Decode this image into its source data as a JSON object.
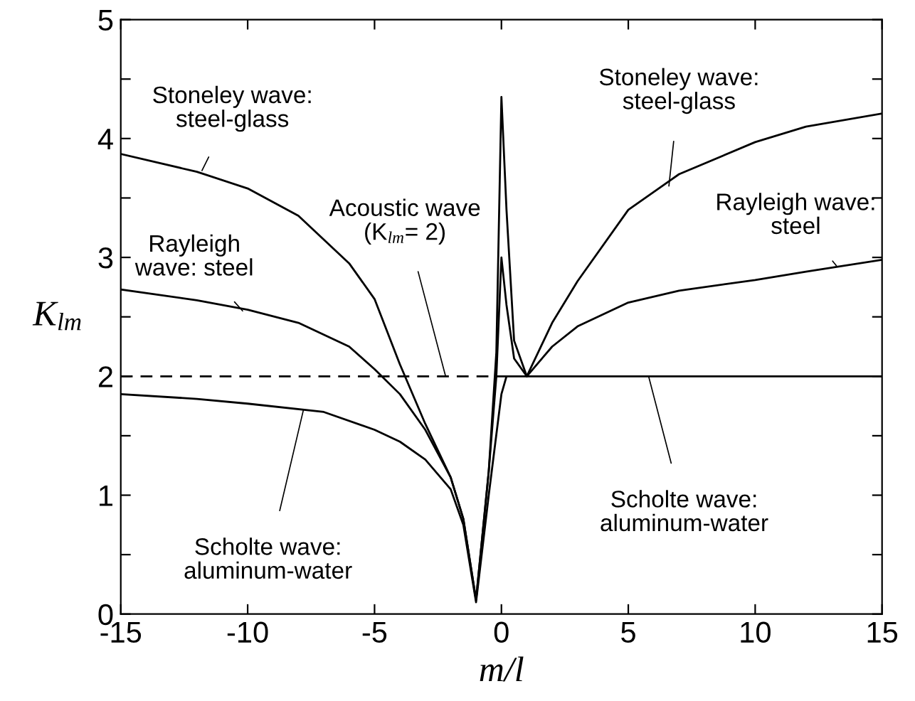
{
  "chart_data": {
    "type": "line",
    "xlabel": "m/l",
    "ylabel": "K$_{lm}$",
    "xlim": [
      -15,
      15
    ],
    "ylim": [
      0,
      5
    ],
    "xticks": [
      -15,
      -10,
      -5,
      0,
      5,
      10,
      15
    ],
    "yticks": [
      0,
      {
        "value": 0.5,
        "label": null
      },
      1,
      {
        "value": 1.5,
        "label": null
      },
      2,
      {
        "value": 2.5,
        "label": null
      },
      3,
      {
        "value": 3.5,
        "label": null
      },
      4,
      {
        "value": 4.5,
        "label": null
      },
      5
    ],
    "grid": false,
    "legend": false,
    "marker": "none",
    "series": [
      {
        "color": "#000000",
        "line_style": "solid",
        "x": [
          -15,
          -12,
          -10,
          -8,
          -6,
          -5,
          -4,
          -3,
          -2,
          -1.5,
          -1,
          -0.5,
          -0.2,
          0,
          0.2,
          0.5,
          1,
          2,
          3,
          5,
          7,
          10,
          12,
          15
        ],
        "values": [
          3.87,
          3.72,
          3.58,
          3.35,
          2.95,
          2.65,
          2.1,
          1.6,
          1.15,
          0.8,
          0.12,
          1.2,
          2.2,
          4.35,
          3.4,
          2.3,
          2.0,
          2.45,
          2.8,
          3.4,
          3.7,
          3.97,
          4.1,
          4.21
        ]
      },
      {
        "color": "#000000",
        "line_style": "solid",
        "x": [
          -15,
          -12,
          -10,
          -8,
          -6,
          -5,
          -4,
          -3,
          -2,
          -1.5,
          -1,
          -0.5,
          -0.2,
          0,
          0.2,
          0.5,
          1,
          2,
          3,
          5,
          7,
          10,
          12,
          15
        ],
        "values": [
          2.73,
          2.64,
          2.56,
          2.45,
          2.25,
          2.06,
          1.85,
          1.55,
          1.15,
          0.8,
          0.12,
          1.2,
          2.0,
          3.0,
          2.6,
          2.15,
          2.0,
          2.25,
          2.42,
          2.62,
          2.72,
          2.81,
          2.88,
          2.98
        ]
      },
      {
        "color": "#000000",
        "line_style": "solid",
        "x": [
          -15,
          -12,
          -10,
          -7,
          -5,
          -4,
          -3,
          -2,
          -1.5,
          -1,
          -0.5,
          0,
          0.2,
          2,
          15
        ],
        "values": [
          1.85,
          1.81,
          1.77,
          1.7,
          1.55,
          1.45,
          1.3,
          1.05,
          0.75,
          0.1,
          1.0,
          1.85,
          2.0,
          2.0,
          2.0
        ]
      },
      {
        "color": "#000000",
        "line_style": "dashed",
        "x": [
          -15,
          0.2
        ],
        "values": [
          2,
          2
        ]
      }
    ],
    "annotations": [
      {
        "text": "Stoneley wave:\nsteel-glass",
        "x": -11.8,
        "y": 3.73
      },
      {
        "text": "Rayleigh\nwave: steel",
        "x": -10.2,
        "y": 2.55
      },
      {
        "text": "Acoustic wave\n(K$_{lm}$= 2)",
        "x": -2.2,
        "y": 2.0
      },
      {
        "text": "Scholte wave:\naluminum-water",
        "x": -7.8,
        "y": 1.72
      },
      {
        "text": "Stoneley wave:\nsteel-glass",
        "x": 6.6,
        "y": 3.6
      },
      {
        "text": "Rayleigh wave:\nsteel",
        "x": 13.2,
        "y": 2.93
      },
      {
        "text": "Scholte wave:\naluminum-water",
        "x": 5.8,
        "y": 2.0
      }
    ]
  }
}
